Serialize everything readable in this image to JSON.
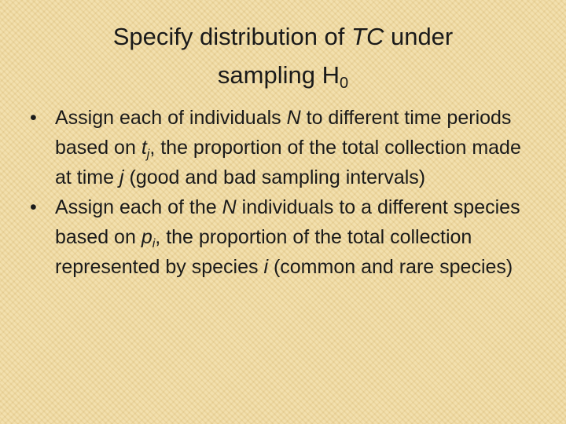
{
  "title": [
    "Specify distribution of ",
    "TC",
    " under",
    "sampling H",
    "0"
  ],
  "bullets": [
    [
      "Assign each of individuals ",
      "N",
      " to different time periods based on ",
      "t",
      "j",
      ", the proportion of the total collection made at time ",
      "j",
      " (good and bad sampling intervals)"
    ],
    [
      "Assign each of the ",
      "N",
      " individuals to a different species based on ",
      "p",
      "i",
      ", the proportion of the total collection represented by species ",
      "i",
      " (common and rare species)"
    ]
  ]
}
